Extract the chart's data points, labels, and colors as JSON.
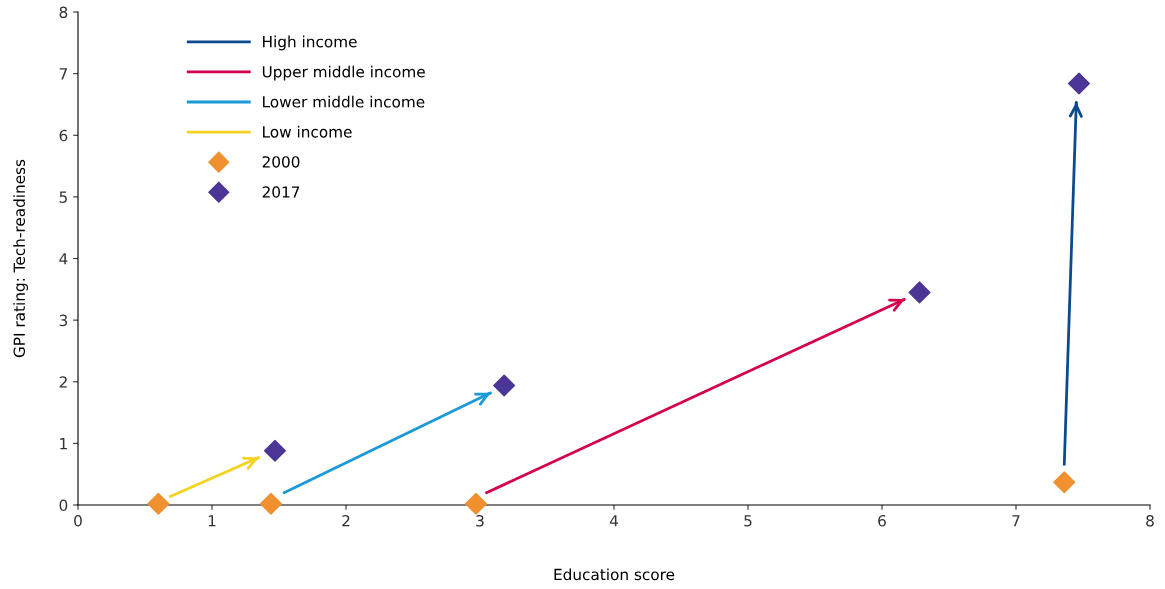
{
  "chart_data": {
    "type": "scatter",
    "xlabel": "Education score",
    "ylabel": "GPI rating: Tech-readiness",
    "xlim": [
      0,
      8
    ],
    "xticks": [
      0,
      1,
      2,
      3,
      4,
      5,
      6,
      7,
      8
    ],
    "ylim": [
      0,
      8
    ],
    "yticks": [
      0,
      1,
      2,
      3,
      4,
      5,
      6,
      7,
      8
    ],
    "grid": false,
    "legend": "top left",
    "series": [
      {
        "name": "High income",
        "type": "line",
        "color": "#0c4a8e",
        "x": [
          7.36,
          7.45
        ],
        "values": [
          0.64,
          6.54
        ]
      },
      {
        "name": "Upper middle income",
        "type": "line",
        "color": "#d4004f",
        "x": [
          3.04,
          6.17
        ],
        "values": [
          0.19,
          3.34
        ]
      },
      {
        "name": "Lower middle income",
        "type": "line",
        "color": "#1a9ad6",
        "x": [
          1.53,
          3.08
        ],
        "values": [
          0.19,
          1.82
        ]
      },
      {
        "name": "Low income",
        "type": "line",
        "color": "#f5d21f",
        "x": [
          0.68,
          1.35
        ],
        "values": [
          0.13,
          0.77
        ]
      },
      {
        "name": "2000",
        "marker": "diamond",
        "color": "#f0902f",
        "x": [
          0.6,
          1.44,
          2.97,
          7.36
        ],
        "values": [
          0.02,
          0.02,
          0.02,
          0.37
        ]
      },
      {
        "name": "2017",
        "marker": "diamond",
        "color": "#4b3596",
        "x": [
          1.47,
          3.18,
          6.28,
          7.47
        ],
        "values": [
          0.88,
          1.94,
          3.45,
          6.84
        ]
      }
    ]
  }
}
